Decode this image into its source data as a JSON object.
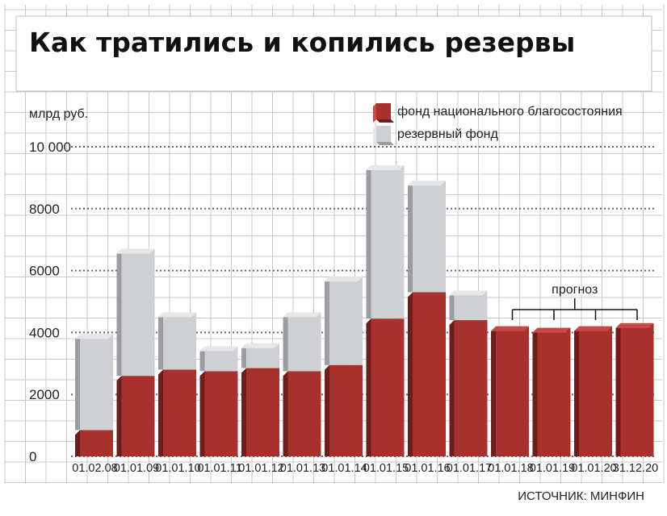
{
  "chart_data": {
    "type": "bar",
    "stacked": true,
    "title": "Как тратились и копились резервы",
    "ylabel": "млрд руб.",
    "ylim": [
      0,
      10000
    ],
    "yticks": [
      {
        "value": 0,
        "label": "0"
      },
      {
        "value": 2000,
        "label": "2000"
      },
      {
        "value": 4000,
        "label": "4000"
      },
      {
        "value": 6000,
        "label": "6000"
      },
      {
        "value": 8000,
        "label": "8000"
      },
      {
        "value": 10000,
        "label": "10 000"
      }
    ],
    "categories": [
      "01.02.08",
      "01.01.09",
      "01.01.10",
      "01.01.11",
      "01.01.12",
      "01.01.13",
      "01.01.14",
      "01.01.15",
      "01.01.16",
      "01.01.17",
      "01.01.18",
      "01.01.19",
      "01.01.20",
      "31.12.20"
    ],
    "series": [
      {
        "name": "фонд национального благосостояния",
        "color": "#a8312d",
        "values": [
          850,
          2600,
          2800,
          2750,
          2850,
          2750,
          2950,
          4450,
          5300,
          4400,
          4200,
          4150,
          4200,
          4300
        ]
      },
      {
        "name": "резервный фонд",
        "color": "#cfd0d3",
        "values": [
          3100,
          4100,
          1850,
          800,
          800,
          1900,
          2850,
          4950,
          3600,
          950,
          0,
          0,
          0,
          0
        ]
      }
    ],
    "annotations": [
      {
        "text": "прогноз",
        "categories": [
          "01.01.18",
          "01.01.19",
          "01.01.20",
          "31.12.20"
        ]
      }
    ],
    "grid": true,
    "legend": "top-right",
    "source": "ИСТОЧНИК: МИНФИН"
  }
}
